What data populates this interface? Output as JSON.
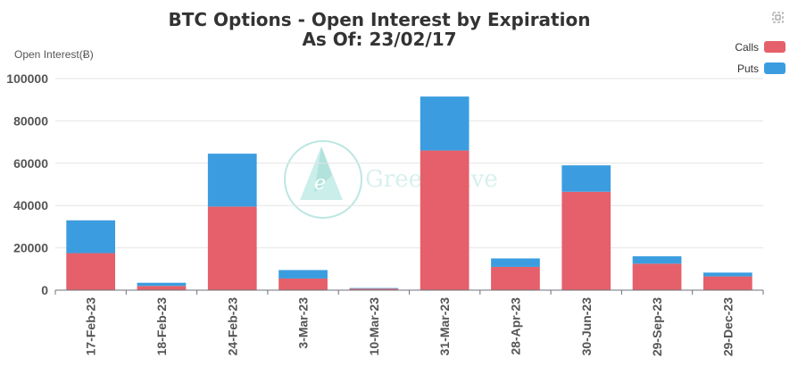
{
  "toolbox": {
    "icon": "restore-icon"
  },
  "watermark": {
    "text": "GreeksLive"
  },
  "chart_data": {
    "type": "bar",
    "stacked": true,
    "title": "BTC Options - Open Interest by Expiration",
    "subtitle": "As Of: 23/02/17",
    "ylabel": "Open Interest(Ƀ)",
    "ylim": [
      0,
      100000
    ],
    "yticks": [
      0,
      20000,
      40000,
      60000,
      80000,
      100000
    ],
    "grid": true,
    "legend_position": "top-right",
    "categories": [
      "17-Feb-23",
      "18-Feb-23",
      "24-Feb-23",
      "3-Mar-23",
      "10-Mar-23",
      "31-Mar-23",
      "28-Apr-23",
      "30-Jun-23",
      "29-Sep-23",
      "29-Dec-23"
    ],
    "series": [
      {
        "name": "Calls",
        "color": "#e5606a",
        "values": [
          17500,
          2000,
          39500,
          5500,
          700,
          66000,
          11000,
          46500,
          12500,
          6500
        ]
      },
      {
        "name": "Puts",
        "color": "#3b9de0",
        "values": [
          15500,
          1500,
          25000,
          4000,
          300,
          25500,
          4000,
          12500,
          3500,
          1800
        ]
      }
    ]
  }
}
